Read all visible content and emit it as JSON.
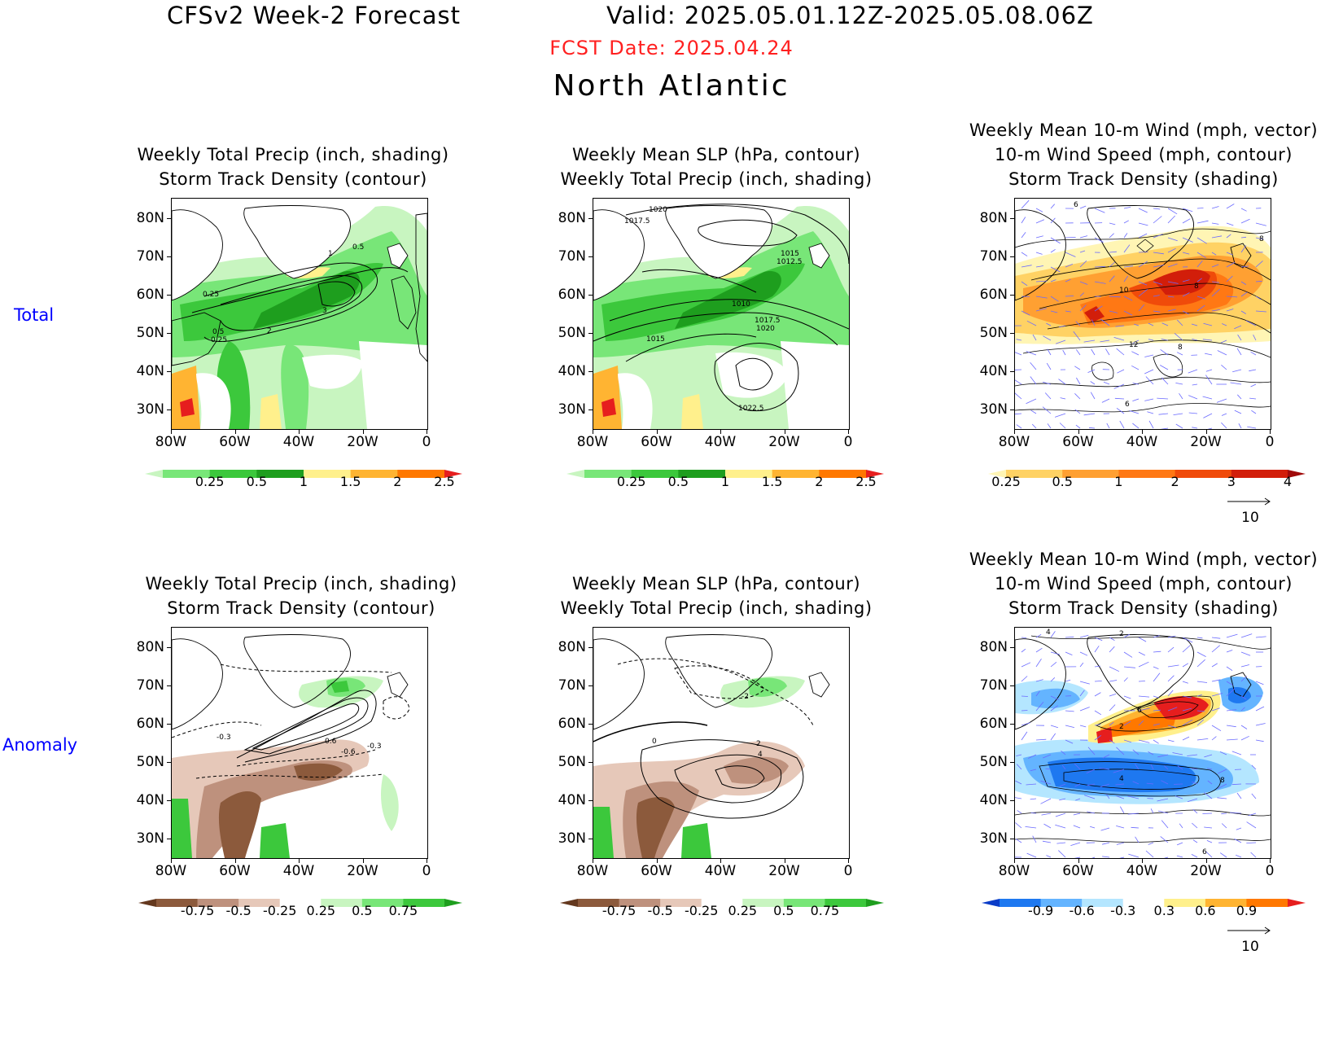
{
  "header": {
    "title": "CFSv2 Week-2 Forecast",
    "valid": "Valid: 2025.05.01.12Z-2025.05.08.06Z",
    "fcst_date": "FCST Date: 2025.04.24",
    "region": "North Atlantic"
  },
  "rows": [
    {
      "label": "Total"
    },
    {
      "label": "Anomaly"
    }
  ],
  "panel_titles": {
    "precip_std": [
      "Weekly Total Precip (inch, shading)",
      "Storm Track Density (contour)"
    ],
    "slp_precip": [
      "Weekly Mean SLP (hPa, contour)",
      "Weekly Total Precip (inch, shading)"
    ],
    "wind_std": [
      "Weekly Mean 10-m Wind (mph, vector)",
      "10-m Wind Speed (mph, contour)",
      "Storm Track Density (shading)"
    ]
  },
  "axes": {
    "lat_labels": [
      "80N",
      "70N",
      "60N",
      "50N",
      "40N",
      "30N"
    ],
    "lon_labels": [
      "80W",
      "60W",
      "40W",
      "20W",
      "0"
    ]
  },
  "colorbars": {
    "precip_total": {
      "labels": [
        "0.25",
        "0.5",
        "1",
        "1.5",
        "2",
        "2.5"
      ],
      "colors": [
        "#c8f5c0",
        "#78e678",
        "#3cc83c",
        "#1e9e1e",
        "#fff08c",
        "#ffb432",
        "#ff7800",
        "#e61e1e"
      ]
    },
    "std_total": {
      "labels": [
        "0.25",
        "0.5",
        "1",
        "2",
        "3",
        "4"
      ],
      "colors": [
        "#fff5b4",
        "#ffd264",
        "#ffa032",
        "#ff7814",
        "#f04b0a",
        "#d21e0a",
        "#a00a0a"
      ]
    },
    "precip_anom": {
      "labels": [
        "-0.75",
        "-0.5",
        "-0.25",
        "0.25",
        "0.5",
        "0.75"
      ],
      "colors": [
        "#64381e",
        "#8c5a3c",
        "#be917d",
        "#e6c8b9",
        "#ffffff",
        "#c8f5c0",
        "#78e678",
        "#3cc83c",
        "#1e9e1e"
      ]
    },
    "std_anom": {
      "labels": [
        "-0.9",
        "-0.6",
        "-0.3",
        "0.3",
        "0.6",
        "0.9"
      ],
      "colors": [
        "#0a3cc8",
        "#1e78f0",
        "#64b4ff",
        "#b4e6ff",
        "#ffffff",
        "#fff08c",
        "#ffb432",
        "#ff7800",
        "#e61e1e"
      ]
    }
  },
  "contour_labels": {
    "p1": [
      "0.5",
      "1",
      "0.25",
      "3",
      "2",
      "0.5",
      "0.25"
    ],
    "p2": [
      "1020",
      "1017.5",
      "1015",
      "1012.5",
      "1010",
      "1017.5",
      "1020",
      "1015",
      "1022.5"
    ],
    "p3": [
      "6",
      "8",
      "10",
      "8",
      "12",
      "8",
      "6"
    ],
    "p4": [
      "-0.3",
      "0.6",
      "-0.6",
      "-0.3"
    ],
    "p5": [
      "-2",
      "0",
      "2",
      "4"
    ],
    "p6": [
      "4",
      "2",
      "6",
      "2",
      "4",
      "8",
      "6"
    ]
  },
  "vector_ref": "10",
  "colors": {
    "fcst_date": "#ff2020",
    "row_label": "#0000ff",
    "vectors": "#6a6aff"
  }
}
